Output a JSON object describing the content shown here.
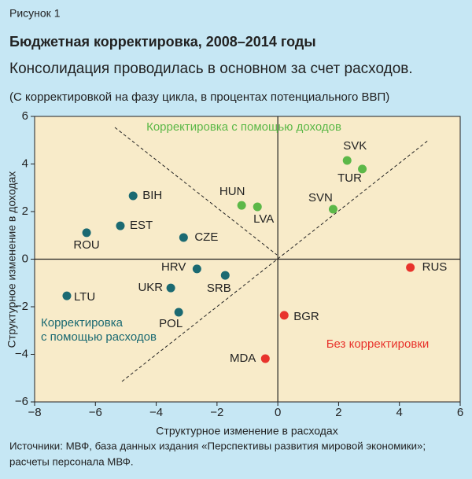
{
  "figure_label": "Рисунок 1",
  "chart_data": {
    "type": "scatter",
    "title": "Бюджетная корректировка, 2008–2014 годы",
    "subtitle": "Консолидация проводилась в основном за счет расходов.",
    "note": "(С корректировкой на фазу цикла, в процентах потенциального ВВП)",
    "x_label": "Структурное изменение в расходах",
    "y_label": "Структурное изменение в доходах",
    "xlim": [
      -8,
      6
    ],
    "ylim": [
      -6,
      6
    ],
    "xticks": [
      {
        "value": -8,
        "label": "−8"
      },
      {
        "value": -6,
        "label": "−6"
      },
      {
        "value": -4,
        "label": "−4"
      },
      {
        "value": -2,
        "label": "−2"
      },
      0,
      2,
      4,
      6
    ],
    "yticks": [
      {
        "value": -6,
        "label": "−6"
      },
      {
        "value": -4,
        "label": "−4"
      },
      {
        "value": -2,
        "label": "−2"
      },
      0,
      2,
      4,
      6
    ],
    "series": [
      {
        "color": "#1b6a72",
        "labels": [
          "BIH",
          "EST",
          "ROU",
          "CZE",
          "HRV",
          "SRB",
          "UKR",
          "POL",
          "LTU"
        ],
        "x": [
          -4.76,
          -5.18,
          -6.29,
          -3.1,
          -2.66,
          -1.73,
          -3.52,
          -3.26,
          -6.94
        ],
        "values": [
          2.66,
          1.4,
          1.11,
          0.91,
          -0.41,
          -0.68,
          -1.21,
          -2.23,
          -1.54
        ]
      },
      {
        "color": "#5cb848",
        "labels": [
          "HUN",
          "LVA",
          "SVN",
          "SVK",
          "TUR"
        ],
        "x": [
          -1.19,
          -0.67,
          1.82,
          2.28,
          2.78
        ],
        "values": [
          2.26,
          2.2,
          2.1,
          4.15,
          3.79
        ]
      },
      {
        "color": "#e8332c",
        "labels": [
          "RUS",
          "BGR",
          "MDA"
        ],
        "x": [
          4.36,
          0.21,
          -0.41
        ],
        "values": [
          -0.35,
          -2.36,
          -4.18
        ]
      }
    ],
    "annotations": [
      {
        "lines": [
          "Корректировка с помощью доходов"
        ],
        "color": "#5cb848"
      },
      {
        "lines": [
          "Корректировка",
          "с помощью расходов"
        ],
        "color": "#1b6a72"
      },
      {
        "lines": [
          "Без корректировки"
        ],
        "color": "#e8332c"
      }
    ],
    "source": [
      "Источники: МВФ, база данных издания «Перспективы развития мировой экономики»;",
      "расчеты персонала МВФ."
    ]
  }
}
